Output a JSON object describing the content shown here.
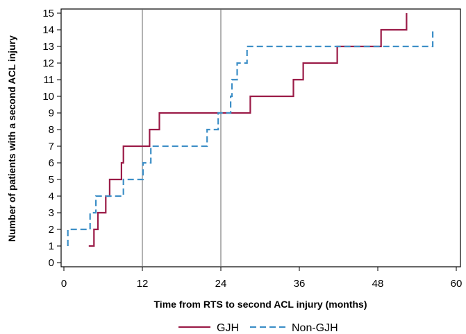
{
  "chart_data": {
    "type": "line",
    "title": "",
    "xlabel": "Time from RTS to second ACL injury (months)",
    "ylabel": "Number of patients with a second ACL injury",
    "xlim": [
      0,
      60
    ],
    "ylim": [
      0,
      15
    ],
    "x_ticks": [
      0,
      12,
      24,
      36,
      48,
      60
    ],
    "y_ticks": [
      0,
      1,
      2,
      3,
      4,
      5,
      6,
      7,
      8,
      9,
      10,
      11,
      12,
      13,
      14,
      15
    ],
    "reference_lines_x": [
      12,
      24
    ],
    "grid": false,
    "legend_position": "bottom",
    "series": [
      {
        "name": "GJH",
        "color": "#9b1b47",
        "style": "solid",
        "step_points": [
          [
            3.8,
            1
          ],
          [
            4.6,
            1
          ],
          [
            4.6,
            2
          ],
          [
            5.2,
            2
          ],
          [
            5.2,
            3
          ],
          [
            6.4,
            3
          ],
          [
            6.4,
            4
          ],
          [
            7.0,
            4
          ],
          [
            7.0,
            5
          ],
          [
            8.8,
            5
          ],
          [
            8.8,
            6
          ],
          [
            9.1,
            6
          ],
          [
            9.1,
            7
          ],
          [
            13.1,
            7
          ],
          [
            13.1,
            8
          ],
          [
            14.6,
            8
          ],
          [
            14.6,
            9
          ],
          [
            28.5,
            9
          ],
          [
            28.5,
            10
          ],
          [
            35.1,
            10
          ],
          [
            35.1,
            11
          ],
          [
            36.6,
            11
          ],
          [
            36.6,
            12
          ],
          [
            41.8,
            12
          ],
          [
            41.8,
            13
          ],
          [
            48.5,
            13
          ],
          [
            48.5,
            14
          ],
          [
            52.4,
            14
          ],
          [
            52.4,
            15
          ]
        ]
      },
      {
        "name": "Non-GJH",
        "color": "#3d8fc7",
        "style": "dashed",
        "step_points": [
          [
            0.6,
            1
          ],
          [
            0.6,
            2
          ],
          [
            4.0,
            2
          ],
          [
            4.0,
            3
          ],
          [
            4.9,
            3
          ],
          [
            4.9,
            4
          ],
          [
            9.1,
            4
          ],
          [
            9.1,
            5
          ],
          [
            12.1,
            5
          ],
          [
            12.1,
            6
          ],
          [
            13.3,
            6
          ],
          [
            13.3,
            7
          ],
          [
            21.9,
            7
          ],
          [
            21.9,
            8
          ],
          [
            23.6,
            8
          ],
          [
            23.6,
            9
          ],
          [
            25.5,
            9
          ],
          [
            25.5,
            10
          ],
          [
            25.7,
            10
          ],
          [
            25.7,
            11
          ],
          [
            26.5,
            11
          ],
          [
            26.5,
            12
          ],
          [
            28.0,
            12
          ],
          [
            28.0,
            13
          ],
          [
            56.4,
            13
          ],
          [
            56.4,
            14
          ]
        ]
      }
    ]
  }
}
